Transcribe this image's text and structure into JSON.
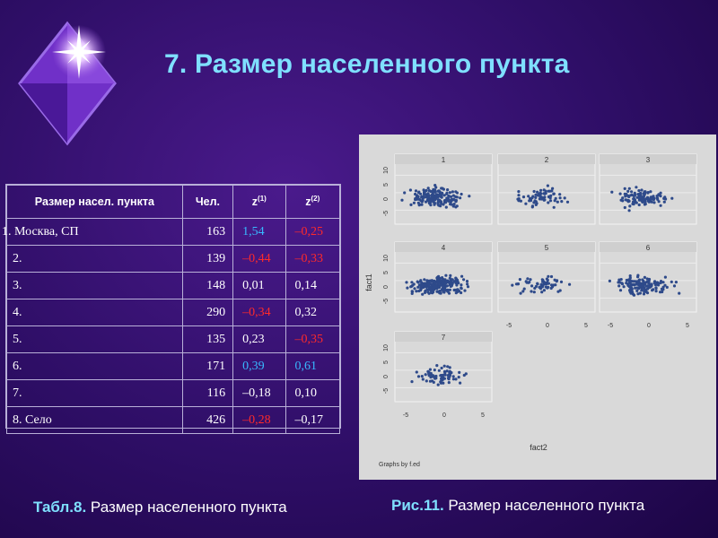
{
  "title": "7. Размер населенного пункта",
  "table": {
    "headers": [
      "Размер насел. пункта",
      "Чел.",
      "z",
      "z"
    ],
    "header_sups": [
      "(1)",
      "(2)"
    ],
    "rows": [
      {
        "name": "1. Москва, СП",
        "n": "163",
        "z1": "1,54",
        "z2": "–0,25",
        "z1_color": "blue",
        "z2_color": "red"
      },
      {
        "name": "2.",
        "n": "139",
        "z1": "–0,44",
        "z2": "–0,33",
        "z1_color": "red",
        "z2_color": "red"
      },
      {
        "name": "3.",
        "n": "148",
        "z1": "0,01",
        "z2": "0,14",
        "z1_color": "white",
        "z2_color": "white"
      },
      {
        "name": "4.",
        "n": "290",
        "z1": "–0,34",
        "z2": "0,32",
        "z1_color": "red",
        "z2_color": "white"
      },
      {
        "name": "5.",
        "n": "135",
        "z1": "0,23",
        "z2": "–0,35",
        "z1_color": "white",
        "z2_color": "red"
      },
      {
        "name": "6.",
        "n": "171",
        "z1": "0,39",
        "z2": "0,61",
        "z1_color": "blue",
        "z2_color": "blue"
      },
      {
        "name": "7.",
        "n": "116",
        "z1": "–0,18",
        "z2": "0,10",
        "z1_color": "white",
        "z2_color": "white"
      },
      {
        "name": "8.  Село",
        "n": "426",
        "z1": "–0,28",
        "z2": "–0,17",
        "z1_color": "red",
        "z2_color": "white"
      }
    ]
  },
  "caption_left": {
    "prefix": "Табл.8.",
    "text": " Размер населенного пункта"
  },
  "caption_right": {
    "prefix": "Рис.11.",
    "text": " Размер населенного пункта"
  },
  "figure": {
    "panel_labels": [
      "1",
      "2",
      "3",
      "4",
      "5",
      "6",
      "7"
    ],
    "x_ticks": [
      "-5",
      "0",
      "5"
    ],
    "y_ticks": [
      "10",
      "5",
      "0",
      "-5"
    ],
    "xlabel": "fact2",
    "ylabel": "fact1",
    "footer": "Graphs by f.ed",
    "point_color": "#2e4a8a"
  },
  "colors": {
    "title": "#7fe0ff",
    "positive": "#38b8ff",
    "negative": "#ff2a2a",
    "background": "#2e0e66"
  },
  "logo": "diamond-star-logo"
}
